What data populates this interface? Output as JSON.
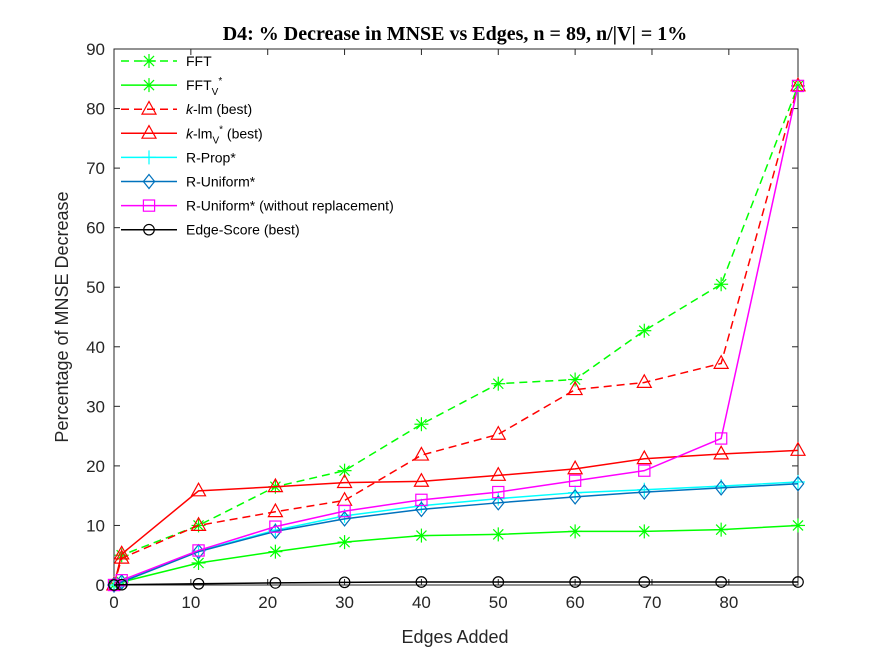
{
  "chart_data": {
    "type": "line",
    "title": "D4: % Decrease in MNSE vs Edges, n = 89, n/|V| = 1%",
    "xlabel": "Edges Added",
    "ylabel": "Percentage of MNSE Decrease",
    "xlim": [
      0,
      89
    ],
    "ylim": [
      0,
      90
    ],
    "xticks": [
      0,
      10,
      20,
      30,
      40,
      50,
      60,
      70,
      80
    ],
    "yticks": [
      0,
      10,
      20,
      30,
      40,
      50,
      60,
      70,
      80,
      90
    ],
    "grid": false,
    "legend_position": "top-left",
    "x": [
      0,
      1,
      11,
      21,
      30,
      40,
      50,
      60,
      69,
      79,
      89
    ],
    "series": [
      {
        "name": "FFT",
        "legend_parts": [
          {
            "text": "FFT",
            "style": "normal"
          }
        ],
        "color": "#00FF00",
        "dash": true,
        "marker": "asterisk",
        "values": [
          0,
          5.0,
          10.0,
          16.5,
          19.2,
          27.0,
          33.8,
          34.5,
          42.7,
          50.5,
          83.8
        ]
      },
      {
        "name": "FFTV*",
        "legend_parts": [
          {
            "text": "FFT",
            "style": "normal"
          },
          {
            "text": "V",
            "style": "sub"
          },
          {
            "text": "*",
            "style": "sup"
          }
        ],
        "color": "#00FF00",
        "dash": false,
        "marker": "asterisk",
        "values": [
          0,
          0.5,
          3.7,
          5.6,
          7.2,
          8.3,
          8.5,
          9.0,
          9.0,
          9.3,
          10.0
        ]
      },
      {
        "name": "k-lm (best)",
        "legend_parts": [
          {
            "text": "k",
            "style": "italic"
          },
          {
            "text": "-lm (best)",
            "style": "normal"
          }
        ],
        "color": "#FF0000",
        "dash": true,
        "marker": "triangle",
        "values": [
          0,
          4.5,
          10.0,
          12.3,
          14.2,
          21.8,
          25.3,
          32.8,
          34.0,
          37.2,
          83.8
        ]
      },
      {
        "name": "k-lmV* (best)",
        "legend_parts": [
          {
            "text": "k",
            "style": "italic"
          },
          {
            "text": "-lm",
            "style": "normal"
          },
          {
            "text": "V",
            "style": "sub"
          },
          {
            "text": "*",
            "style": "sup"
          },
          {
            "text": " (best)",
            "style": "normal"
          }
        ],
        "color": "#FF0000",
        "dash": false,
        "marker": "triangle",
        "values": [
          0,
          5.2,
          15.8,
          16.5,
          17.2,
          17.4,
          18.4,
          19.5,
          21.2,
          22.0,
          22.6
        ]
      },
      {
        "name": "R-Prop*",
        "legend_parts": [
          {
            "text": "R-Prop*",
            "style": "normal"
          }
        ],
        "color": "#00FFFF",
        "dash": false,
        "marker": "plus",
        "values": [
          0,
          0.6,
          5.7,
          9.2,
          11.6,
          13.3,
          14.5,
          15.5,
          16.0,
          16.6,
          17.3
        ]
      },
      {
        "name": "R-Uniform*",
        "legend_parts": [
          {
            "text": "R-Uniform*",
            "style": "normal"
          }
        ],
        "color": "#0072BD",
        "dash": false,
        "marker": "diamond",
        "values": [
          0,
          0.5,
          5.6,
          9.0,
          11.1,
          12.7,
          13.8,
          14.8,
          15.6,
          16.3,
          17.0
        ]
      },
      {
        "name": "R-Uniform* (without replacement)",
        "legend_parts": [
          {
            "text": "R-Uniform* (without replacement)",
            "style": "normal"
          }
        ],
        "color": "#FF00FF",
        "dash": false,
        "marker": "square",
        "values": [
          0,
          0.8,
          5.8,
          9.8,
          12.4,
          14.3,
          15.6,
          17.5,
          19.2,
          24.6,
          83.8
        ]
      },
      {
        "name": "Edge-Score (best)",
        "legend_parts": [
          {
            "text": "Edge-Score (best)",
            "style": "normal"
          }
        ],
        "color": "#000000",
        "dash": false,
        "marker": "circle",
        "values": [
          0,
          0.05,
          0.2,
          0.35,
          0.45,
          0.5,
          0.5,
          0.5,
          0.5,
          0.5,
          0.5
        ]
      }
    ]
  }
}
